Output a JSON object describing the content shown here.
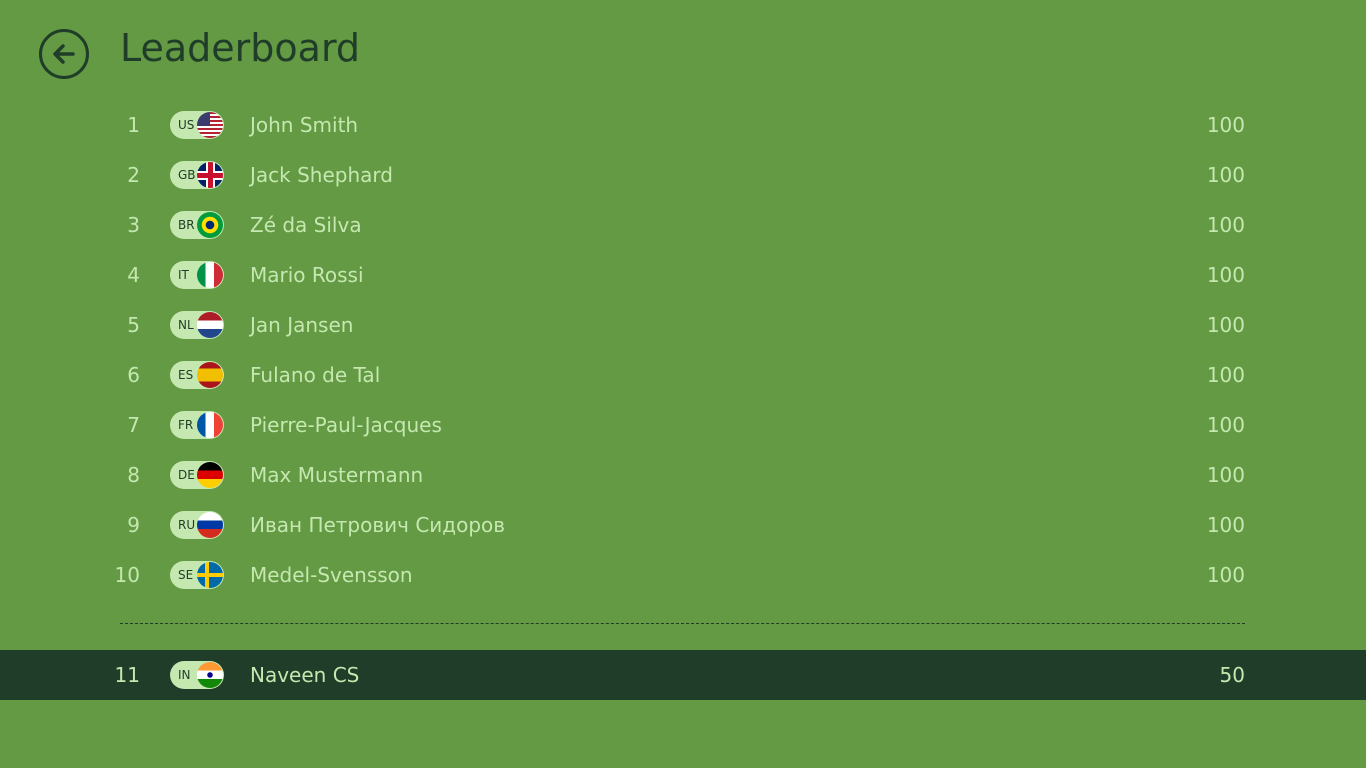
{
  "header": {
    "title": "Leaderboard",
    "back_icon": "arrow-left-circle-icon"
  },
  "colors": {
    "background": "#639a43",
    "dark": "#1f3d28",
    "text": "#c5e8b0"
  },
  "entries": [
    {
      "rank": "1",
      "code": "US",
      "name": "John Smith",
      "score": "100"
    },
    {
      "rank": "2",
      "code": "GB",
      "name": "Jack Shephard",
      "score": "100"
    },
    {
      "rank": "3",
      "code": "BR",
      "name": "Zé da Silva",
      "score": "100"
    },
    {
      "rank": "4",
      "code": "IT",
      "name": "Mario Rossi",
      "score": "100"
    },
    {
      "rank": "5",
      "code": "NL",
      "name": "Jan Jansen",
      "score": "100"
    },
    {
      "rank": "6",
      "code": "ES",
      "name": "Fulano de Tal",
      "score": "100"
    },
    {
      "rank": "7",
      "code": "FR",
      "name": "Pierre-Paul-Jacques",
      "score": "100"
    },
    {
      "rank": "8",
      "code": "DE",
      "name": "Max Mustermann",
      "score": "100"
    },
    {
      "rank": "9",
      "code": "RU",
      "name": "Иван Петрович Сидоров",
      "score": "100"
    },
    {
      "rank": "10",
      "code": "SE",
      "name": "Medel-Svensson",
      "score": "100"
    }
  ],
  "current_user": {
    "rank": "11",
    "code": "IN",
    "name": "Naveen CS",
    "score": "50"
  }
}
